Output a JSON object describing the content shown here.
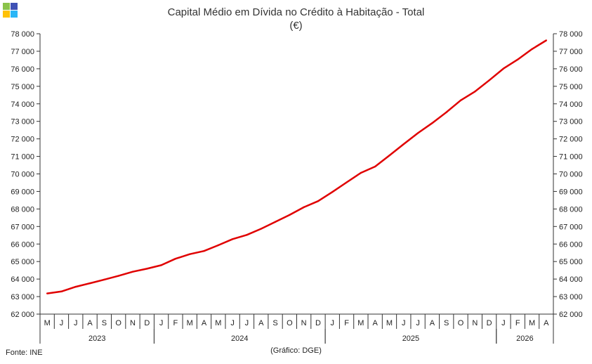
{
  "logo_colors": [
    "#8bc34a",
    "#3f51b5",
    "#ffc107",
    "#29b6f6"
  ],
  "title_line1": "Capital Médio em Dívida no Crédito à Habitação - Total",
  "title_line2": "(€)",
  "source": "Fonte: INE",
  "credit": "(Gráfico: DGE)",
  "colors": {
    "line": "#e00000",
    "axis": "#333333"
  },
  "chart_data": {
    "type": "line",
    "title": "Capital Médio em Dívida no Crédito à Habitação - Total",
    "subtitle": "(€)",
    "ylim": [
      62000,
      78000
    ],
    "y_ticks": [
      62000,
      63000,
      64000,
      65000,
      66000,
      67000,
      68000,
      69000,
      70000,
      71000,
      72000,
      73000,
      74000,
      75000,
      76000,
      77000,
      78000
    ],
    "y_tick_labels": [
      "62 000",
      "63 000",
      "64 000",
      "65 000",
      "66 000",
      "67 000",
      "68 000",
      "69 000",
      "70 000",
      "71 000",
      "72 000",
      "73 000",
      "74 000",
      "75 000",
      "76 000",
      "77 000",
      "78 000"
    ],
    "y_axes": "left and right",
    "grid": false,
    "x": [
      "M",
      "J",
      "J",
      "A",
      "S",
      "O",
      "N",
      "D",
      "J",
      "F",
      "M",
      "A",
      "M",
      "J",
      "J",
      "A",
      "S",
      "O",
      "N",
      "D",
      "J",
      "F",
      "M",
      "A",
      "M",
      "J",
      "J",
      "A",
      "S",
      "O",
      "N",
      "D",
      "J",
      "F",
      "M",
      "A"
    ],
    "years": [
      {
        "label": "2023",
        "start": 0,
        "end": 7
      },
      {
        "label": "2024",
        "start": 8,
        "end": 19
      },
      {
        "label": "2025",
        "start": 20,
        "end": 31
      },
      {
        "label": "2026",
        "start": 32,
        "end": 35
      }
    ],
    "series": [
      {
        "values": [
          63180,
          63290,
          63560,
          63760,
          63970,
          64180,
          64420,
          64590,
          64790,
          65160,
          65420,
          65600,
          65930,
          66280,
          66520,
          66870,
          67260,
          67660,
          68100,
          68450,
          68970,
          69520,
          70060,
          70420,
          71050,
          71700,
          72330,
          72900,
          73520,
          74200,
          74700,
          75340,
          76010,
          76530,
          77120,
          77620
        ]
      }
    ]
  }
}
